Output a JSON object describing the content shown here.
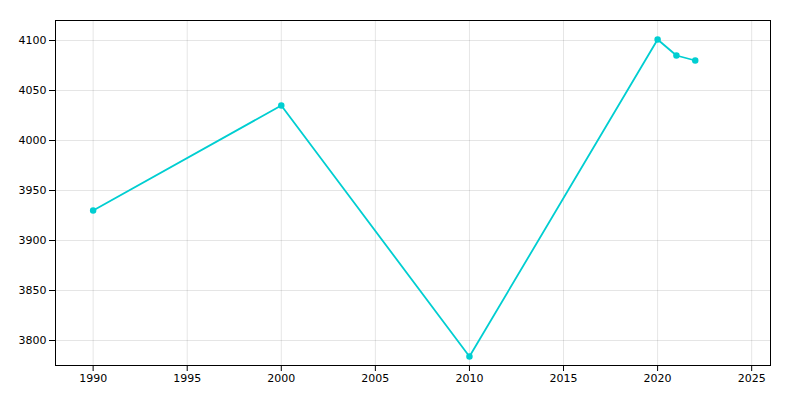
{
  "chart_data": {
    "type": "line",
    "x": [
      1990,
      2000,
      2010,
      2020,
      2021,
      2022
    ],
    "values": [
      3930,
      4035,
      3784,
      4101,
      4085,
      4080
    ],
    "color": "#00CED1",
    "marker": "circle",
    "xlim": [
      1988,
      2026
    ],
    "ylim": [
      3775,
      4120
    ],
    "xticks": [
      1990,
      1995,
      2000,
      2005,
      2010,
      2015,
      2020,
      2025
    ],
    "yticks": [
      3800,
      3850,
      3900,
      3950,
      4000,
      4050,
      4100
    ],
    "grid": true
  }
}
